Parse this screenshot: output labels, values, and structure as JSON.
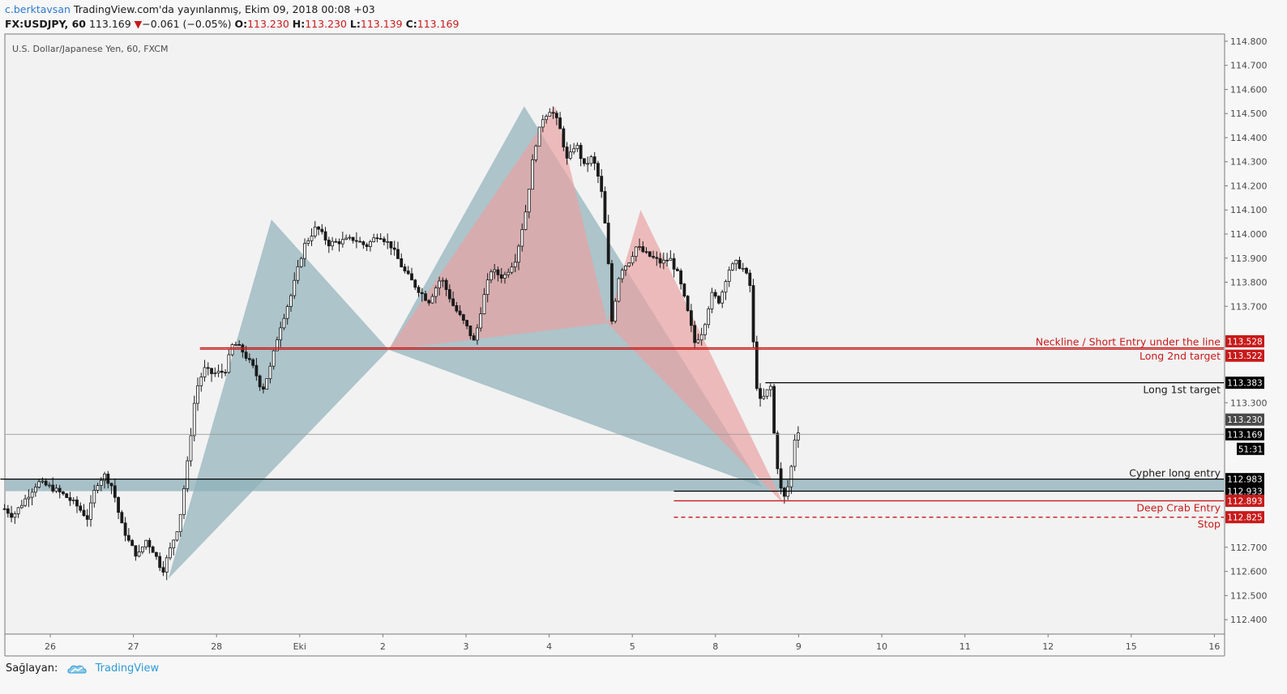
{
  "header": {
    "author": "c.berktavsan",
    "published": "TradingView.com'da yayınlanmış, Ekim 09, 2018 00:08 +03",
    "symbol": "FX:USDJPY, 60",
    "last": "113.169",
    "change_arrow": "▼",
    "change": "−0.061 (−0.05%)",
    "o_label": "O:",
    "o_value": "113.230",
    "h_label": "H:",
    "h_value": "113.230",
    "l_label": "L:",
    "l_value": "113.139",
    "c_label": "C:",
    "c_value": "113.169"
  },
  "footer": {
    "provider_label": "Sağlayan:",
    "brand": "TradingView",
    "logo_icon": "tradingview-cloud-icon"
  },
  "colors": {
    "red": "#c81a1a",
    "teal": "#8fb0b9",
    "pink": "#e9a3a3",
    "candle": "#1a1a1a",
    "price_bg": "#000000",
    "current_bg": "#4a4a4a"
  },
  "chart_data": {
    "type": "candlestick",
    "title": "U.S. Dollar/Japanese Yen, 60, FXCM",
    "ylim": [
      112.34,
      114.83
    ],
    "y_ticks": [
      112.4,
      112.5,
      112.6,
      112.7,
      113.3,
      113.7,
      113.8,
      113.9,
      114.0,
      114.1,
      114.2,
      114.3,
      114.4,
      114.5,
      114.6,
      114.7,
      114.8
    ],
    "y_tick_labels": [
      "112.400",
      "112.500",
      "112.600",
      "112.700",
      "113.300",
      "113.700",
      "113.800",
      "113.900",
      "114.000",
      "114.100",
      "114.200",
      "114.300",
      "114.400",
      "114.500",
      "114.600",
      "114.700",
      "114.800"
    ],
    "x_ticks": [
      {
        "label": "26",
        "day": 0
      },
      {
        "label": "27",
        "day": 1
      },
      {
        "label": "28",
        "day": 2
      },
      {
        "label": "Eki",
        "day": 3
      },
      {
        "label": "2",
        "day": 4
      },
      {
        "label": "3",
        "day": 5
      },
      {
        "label": "4",
        "day": 6
      },
      {
        "label": "5",
        "day": 7
      },
      {
        "label": "8",
        "day": 8
      },
      {
        "label": "9",
        "day": 9
      },
      {
        "label": "10",
        "day": 10
      },
      {
        "label": "11",
        "day": 11
      },
      {
        "label": "12",
        "day": 12
      },
      {
        "label": "15",
        "day": 13
      },
      {
        "label": "16",
        "day": 14
      }
    ],
    "price_path": [
      [
        -0.55,
        112.86
      ],
      [
        -0.45,
        112.83
      ],
      [
        -0.3,
        112.9
      ],
      [
        -0.15,
        112.97
      ],
      [
        0.0,
        112.95
      ],
      [
        0.15,
        112.92
      ],
      [
        0.3,
        112.88
      ],
      [
        0.45,
        112.82
      ],
      [
        0.55,
        112.96
      ],
      [
        0.65,
        113.0
      ],
      [
        0.75,
        112.95
      ],
      [
        0.85,
        112.8
      ],
      [
        0.95,
        112.72
      ],
      [
        1.05,
        112.66
      ],
      [
        1.15,
        112.73
      ],
      [
        1.25,
        112.68
      ],
      [
        1.35,
        112.6
      ],
      [
        1.45,
        112.7
      ],
      [
        1.55,
        112.8
      ],
      [
        1.65,
        113.05
      ],
      [
        1.75,
        113.35
      ],
      [
        1.85,
        113.44
      ],
      [
        1.95,
        113.42
      ],
      [
        2.1,
        113.43
      ],
      [
        2.2,
        113.55
      ],
      [
        2.3,
        113.52
      ],
      [
        2.45,
        113.44
      ],
      [
        2.55,
        113.35
      ],
      [
        2.65,
        113.45
      ],
      [
        2.75,
        113.6
      ],
      [
        2.9,
        113.75
      ],
      [
        3.05,
        113.95
      ],
      [
        3.2,
        114.03
      ],
      [
        3.35,
        113.96
      ],
      [
        3.5,
        113.97
      ],
      [
        3.65,
        113.98
      ],
      [
        3.8,
        113.95
      ],
      [
        3.95,
        114.0
      ],
      [
        4.1,
        113.95
      ],
      [
        4.25,
        113.85
      ],
      [
        4.4,
        113.78
      ],
      [
        4.55,
        113.72
      ],
      [
        4.7,
        113.82
      ],
      [
        4.85,
        113.7
      ],
      [
        5.0,
        113.62
      ],
      [
        5.1,
        113.55
      ],
      [
        5.2,
        113.72
      ],
      [
        5.3,
        113.85
      ],
      [
        5.45,
        113.82
      ],
      [
        5.6,
        113.9
      ],
      [
        5.72,
        114.1
      ],
      [
        5.82,
        114.35
      ],
      [
        5.92,
        114.48
      ],
      [
        6.02,
        114.52
      ],
      [
        6.12,
        114.45
      ],
      [
        6.22,
        114.3
      ],
      [
        6.32,
        114.38
      ],
      [
        6.42,
        114.28
      ],
      [
        6.52,
        114.32
      ],
      [
        6.62,
        114.2
      ],
      [
        6.7,
        113.95
      ],
      [
        6.75,
        113.63
      ],
      [
        6.85,
        113.85
      ],
      [
        6.95,
        113.88
      ],
      [
        7.05,
        113.95
      ],
      [
        7.15,
        113.92
      ],
      [
        7.25,
        113.9
      ],
      [
        7.35,
        113.88
      ],
      [
        7.45,
        113.9
      ],
      [
        7.55,
        113.83
      ],
      [
        7.65,
        113.7
      ],
      [
        7.75,
        113.55
      ],
      [
        7.85,
        113.6
      ],
      [
        7.95,
        113.75
      ],
      [
        8.05,
        113.72
      ],
      [
        8.15,
        113.85
      ],
      [
        8.25,
        113.88
      ],
      [
        8.35,
        113.85
      ],
      [
        8.42,
        113.78
      ],
      [
        8.47,
        113.45
      ],
      [
        8.52,
        113.3
      ],
      [
        8.6,
        113.33
      ],
      [
        8.66,
        113.38
      ],
      [
        8.72,
        113.1
      ],
      [
        8.78,
        112.95
      ],
      [
        8.82,
        112.9
      ],
      [
        8.86,
        112.93
      ],
      [
        8.92,
        113.05
      ],
      [
        8.98,
        113.23
      ],
      [
        9.0,
        113.17
      ]
    ],
    "harmonic_patterns": [
      {
        "name": "bat-1",
        "color": "teal",
        "points": [
          [
            1.42,
            112.57
          ],
          [
            2.66,
            114.06
          ],
          [
            4.07,
            113.52
          ],
          [
            5.7,
            114.53
          ],
          [
            8.56,
            112.95
          ]
        ]
      },
      {
        "name": "crab-2",
        "color": "pink",
        "points": [
          [
            4.07,
            113.52
          ],
          [
            6.07,
            114.53
          ],
          [
            6.7,
            113.63
          ],
          [
            7.1,
            114.1
          ],
          [
            8.82,
            112.88
          ]
        ]
      }
    ],
    "support_band": {
      "from": 112.933,
      "to": 112.983
    },
    "levels": [
      {
        "name": "neckline",
        "label": "Neckline / Short Entry under the line",
        "price": 113.528,
        "color": "red",
        "style": "solid",
        "x_from": 1.8,
        "tag": "113.528"
      },
      {
        "name": "long-2nd",
        "label": "Long 2nd target",
        "price": 113.522,
        "color": "red",
        "style": "solid",
        "x_from": 1.8,
        "tag": "113.522"
      },
      {
        "name": "long-1st",
        "label": "Long 1st target",
        "price": 113.383,
        "color": "black",
        "style": "solid",
        "x_from": 8.6,
        "tag": "113.383"
      },
      {
        "name": "cypher-entry",
        "label": "Cypher long entry",
        "price": 112.983,
        "color": "black",
        "style": "solid",
        "x_from": -0.6,
        "tag": "112.983"
      },
      {
        "name": "band-low",
        "label": "",
        "price": 112.933,
        "color": "black",
        "style": "solid",
        "x_from": 7.5,
        "tag": "112.933"
      },
      {
        "name": "deep-crab",
        "label": "Deep Crab Entry",
        "price": 112.893,
        "color": "red",
        "style": "solid",
        "x_from": 7.5,
        "tag": "112.893"
      },
      {
        "name": "stop",
        "label": "Stop",
        "price": 112.825,
        "color": "red",
        "style": "dashed",
        "x_from": 7.5,
        "tag": "112.825"
      }
    ],
    "current_price": {
      "price": 113.169,
      "tag": "113.169",
      "countdown": "51:31",
      "open": 113.23,
      "open_tag": "113.230"
    },
    "grid": false,
    "legend": "top-left"
  }
}
